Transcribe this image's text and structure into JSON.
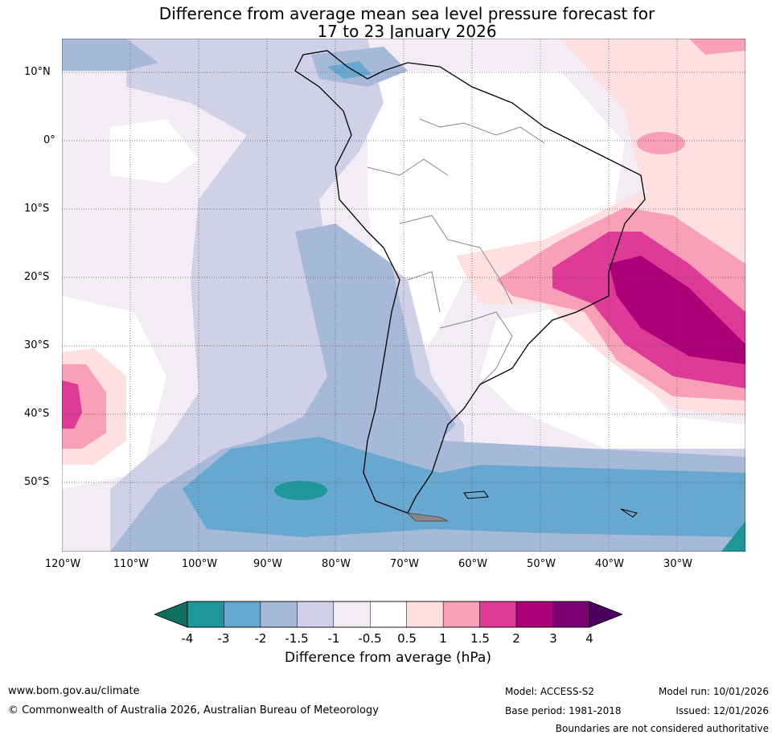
{
  "title": {
    "line1": "Difference from average mean sea level pressure forecast for",
    "line2": "17 to 23 January 2026"
  },
  "map": {
    "lat_labels": [
      "10°N",
      "0°",
      "10°S",
      "20°S",
      "30°S",
      "40°S",
      "50°S"
    ],
    "lon_labels": [
      "120°W",
      "110°W",
      "100°W",
      "90°W",
      "80°W",
      "70°W",
      "60°W",
      "50°W",
      "40°W",
      "30°W"
    ],
    "extent_deg": {
      "lon_min": -120,
      "lon_max": -20,
      "lat_min": -60,
      "lat_max": 15
    }
  },
  "colorbar": {
    "ticks": [
      "-4",
      "-3",
      "-2",
      "-1.5",
      "-1",
      "-0.5",
      "0.5",
      "1",
      "1.5",
      "2",
      "3",
      "4"
    ],
    "colors": [
      "#0e6f5d",
      "#1f9699",
      "#66a8cf",
      "#a7b9d8",
      "#d0d0e6",
      "#f3ecf5",
      "#ffffff",
      "#fde0df",
      "#f99fb8",
      "#de3a98",
      "#ad0078",
      "#7c0075",
      "#4c005f"
    ],
    "label": "Difference from average (hPa)"
  },
  "footer": {
    "website": "www.bom.gov.au/climate",
    "copyright": "© Commonwealth of Australia 2026, Australian Bureau of Meteorology",
    "model": "Model: ACCESS-S2",
    "base_period": "Base period: 1981-2018",
    "model_run": "Model run: 10/01/2026",
    "issued": "Issued: 12/01/2026",
    "disclaimer": "Boundaries are not considered authoritative"
  }
}
